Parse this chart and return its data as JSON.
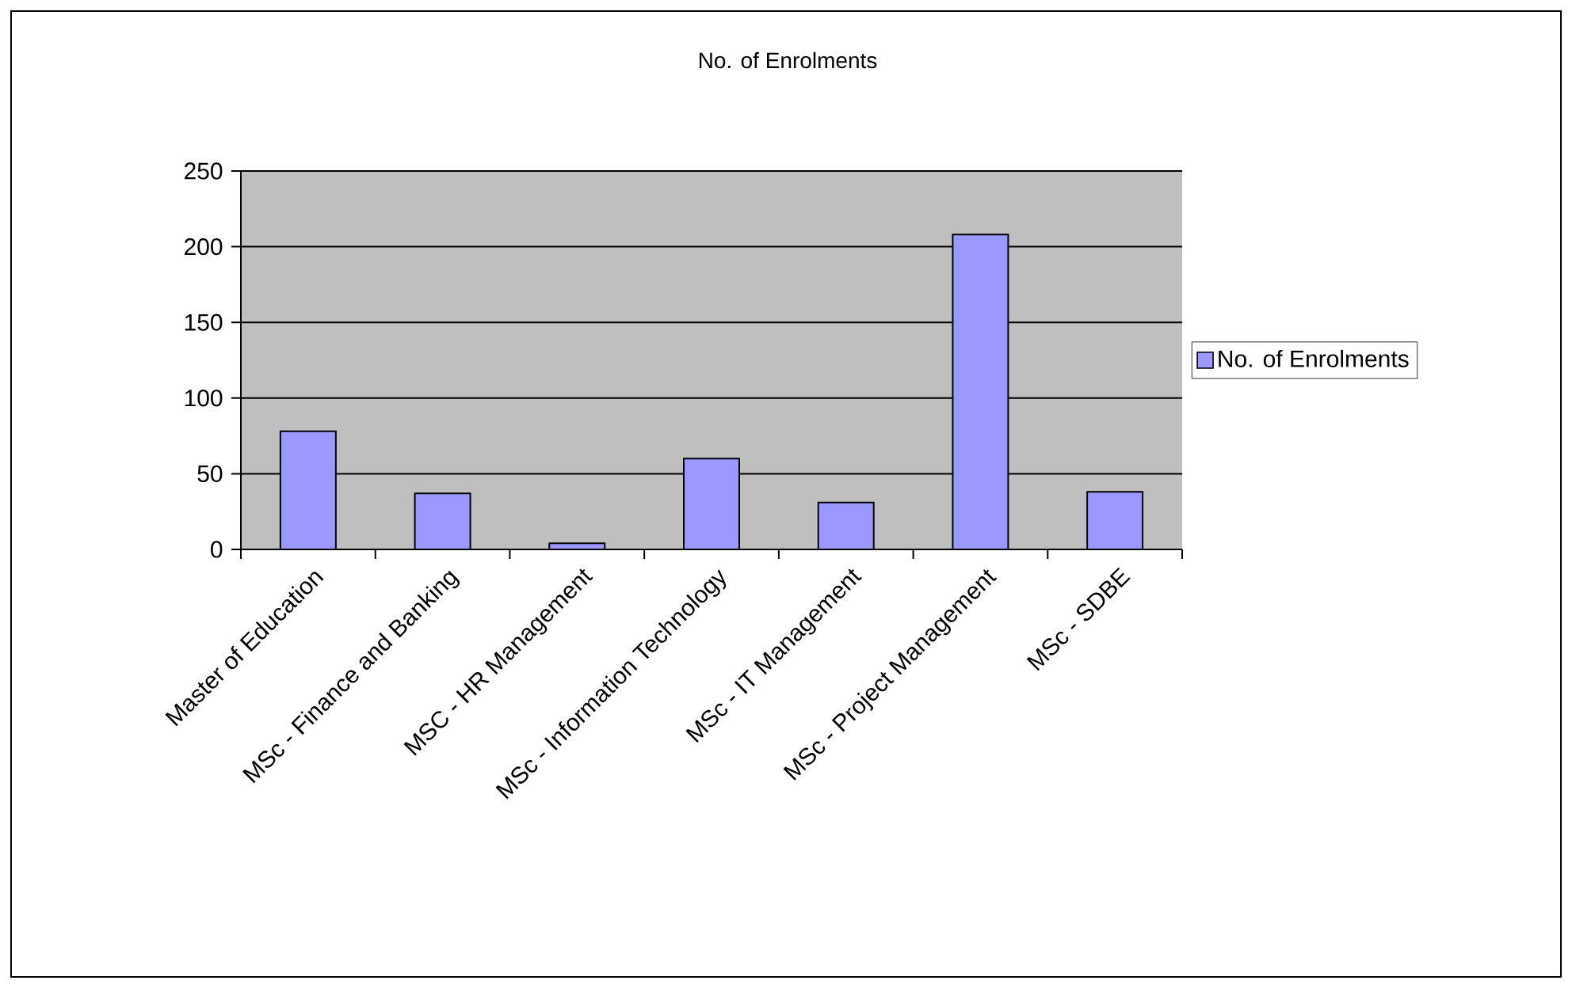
{
  "chart_data": {
    "type": "bar",
    "title": "No. of Enrolments",
    "categories": [
      "Master of Education",
      "MSc - Finance and Banking",
      "MSC - HR Management",
      "MSc - Information Technology",
      "MSc - IT Management",
      "MSc - Project Management",
      "MSc - SDBE"
    ],
    "series": [
      {
        "name": "No. of Enrolments",
        "color": "#9999ff",
        "values": [
          78,
          37,
          4,
          60,
          31,
          208,
          38
        ]
      }
    ],
    "ylim": [
      0,
      250
    ],
    "yticks": [
      0,
      50,
      100,
      150,
      200,
      250
    ],
    "grid": "y",
    "legend": "right"
  }
}
